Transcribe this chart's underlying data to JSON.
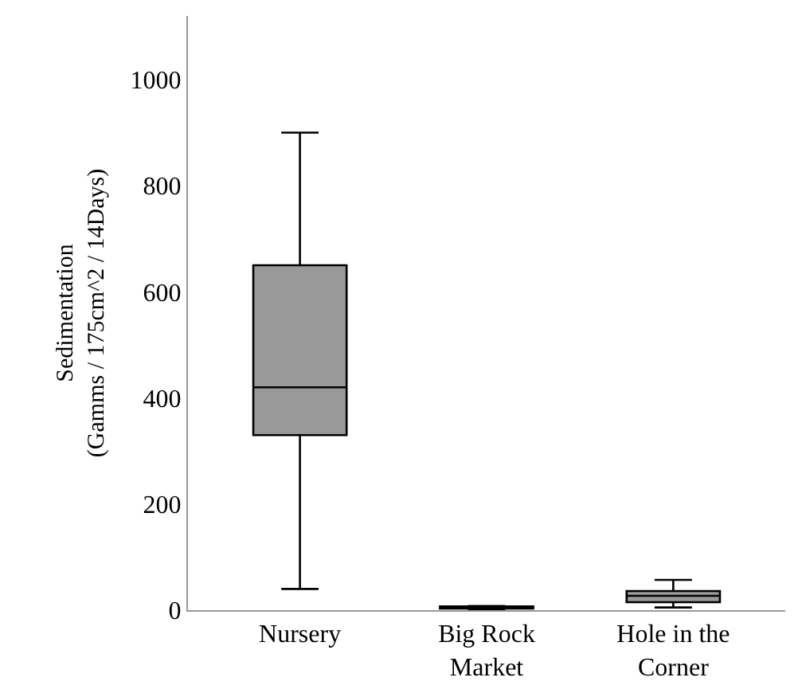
{
  "chart_data": {
    "type": "box",
    "ylabel": "Sedimentation\n(Gamms / 175cm^2 / 14Days)",
    "categories": [
      "Nursery",
      "Big Rock Market",
      "Hole in the Corner"
    ],
    "color": "#999999",
    "ylim": [
      0,
      1120
    ],
    "yticks": [
      0,
      200,
      400,
      600,
      800,
      1000
    ],
    "grid": false,
    "boxes": [
      {
        "low": 40,
        "q1": 330,
        "median": 420,
        "q3": 650,
        "high": 900
      },
      {
        "low": 2,
        "q1": 3,
        "median": 5,
        "q3": 7,
        "high": 8
      },
      {
        "low": 5,
        "q1": 15,
        "median": 27,
        "q3": 36,
        "high": 57
      }
    ]
  }
}
